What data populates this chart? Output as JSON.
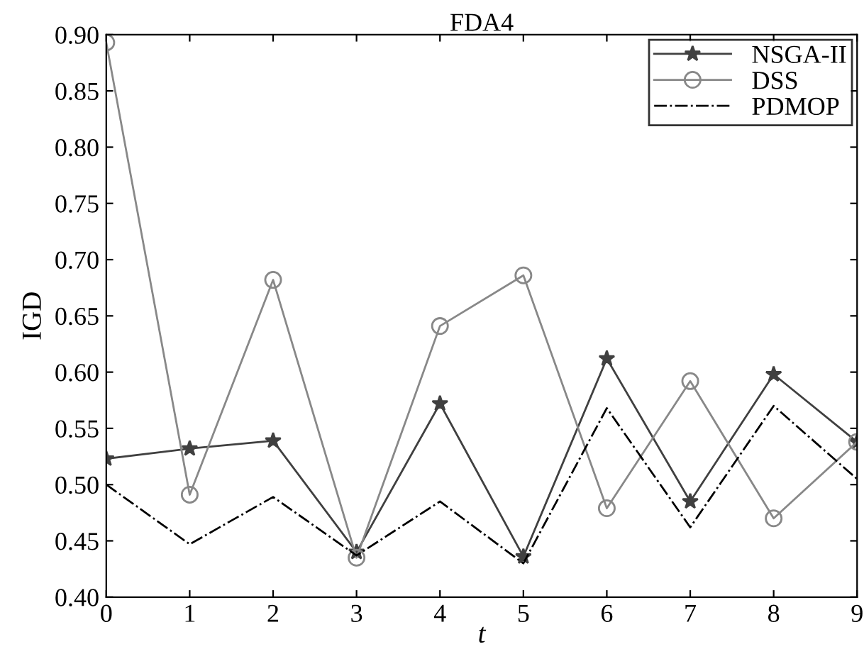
{
  "chart_data": {
    "type": "line",
    "title": "FDA4",
    "xlabel": "t",
    "ylabel": "IGD",
    "x": [
      0,
      1,
      2,
      3,
      4,
      5,
      6,
      7,
      8,
      9
    ],
    "series": [
      {
        "name": "NSGA-II",
        "color": "#404040",
        "marker": "star",
        "line_style": "solid",
        "values": [
          0.523,
          0.532,
          0.539,
          0.44,
          0.572,
          0.436,
          0.612,
          0.485,
          0.598,
          0.538
        ]
      },
      {
        "name": "DSS",
        "color": "#888888",
        "marker": "circle",
        "line_style": "solid",
        "values": [
          0.893,
          0.491,
          0.682,
          0.435,
          0.641,
          0.686,
          0.479,
          0.592,
          0.47,
          0.538
        ]
      },
      {
        "name": "PDMOP",
        "color": "#000000",
        "marker": "none",
        "line_style": "dashdot",
        "values": [
          0.5,
          0.447,
          0.489,
          0.437,
          0.485,
          0.43,
          0.568,
          0.462,
          0.57,
          0.505
        ]
      }
    ],
    "xlim": [
      0,
      9
    ],
    "xticks": [
      0,
      1,
      2,
      3,
      4,
      5,
      6,
      7,
      8,
      9
    ],
    "ylim": [
      0.4,
      0.9
    ],
    "yticks": [
      {
        "value": 0.4,
        "label": "0.40"
      },
      {
        "value": 0.45,
        "label": "0.45"
      },
      {
        "value": 0.5,
        "label": "0.50"
      },
      {
        "value": 0.55,
        "label": "0.55"
      },
      {
        "value": 0.6,
        "label": "0.60"
      },
      {
        "value": 0.65,
        "label": "0.65"
      },
      {
        "value": 0.7,
        "label": "0.70"
      },
      {
        "value": 0.75,
        "label": "0.75"
      },
      {
        "value": 0.8,
        "label": "0.80"
      },
      {
        "value": 0.85,
        "label": "0.85"
      },
      {
        "value": 0.9,
        "label": "0.90"
      }
    ],
    "grid": false,
    "legend": "top right"
  }
}
